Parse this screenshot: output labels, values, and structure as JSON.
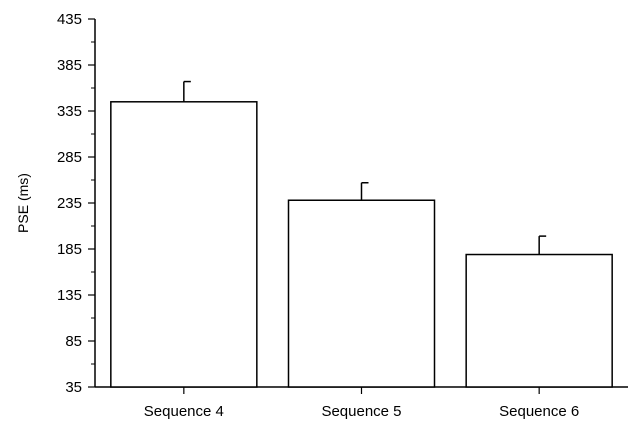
{
  "chart_data": {
    "type": "bar",
    "categories": [
      "Sequence 4",
      "Sequence 5",
      "Sequence 6"
    ],
    "values": [
      345,
      238,
      179
    ],
    "error_plus": [
      22,
      19,
      20
    ],
    "title": "",
    "xlabel": "",
    "ylabel": "PSE (ms)",
    "ylim": [
      35,
      435
    ],
    "yticks": [
      35,
      85,
      135,
      185,
      235,
      285,
      335,
      385,
      435
    ],
    "grid": false,
    "legend": "none",
    "bar_fill": "#ffffff",
    "bar_stroke": "#000000"
  }
}
